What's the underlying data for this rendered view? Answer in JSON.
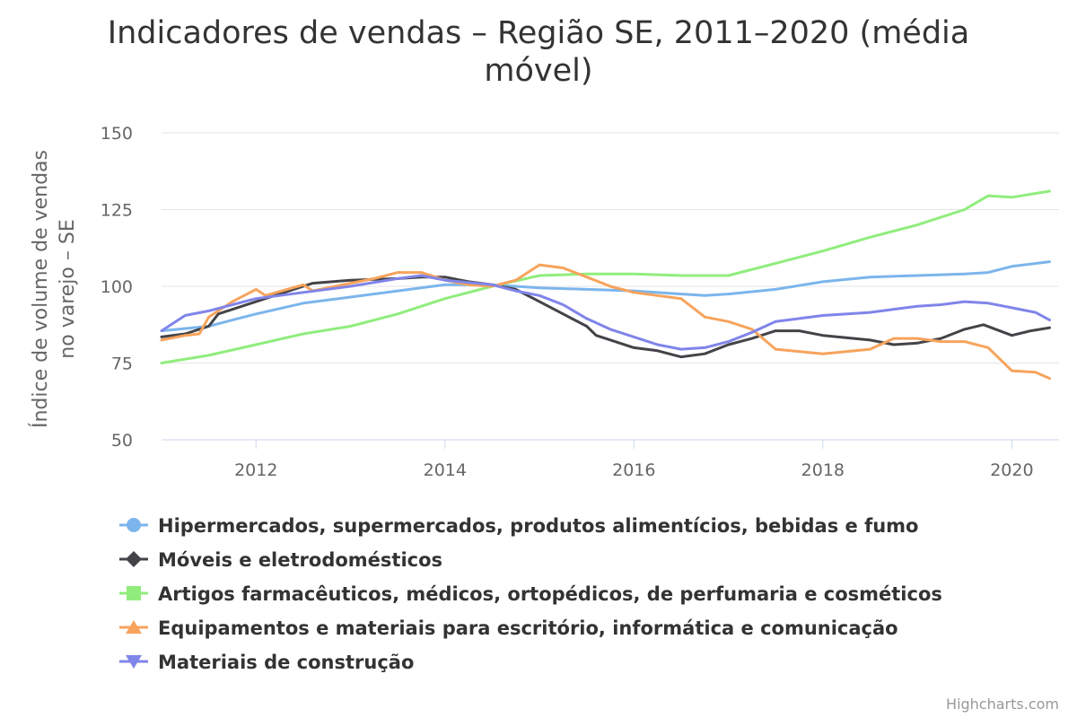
{
  "chart_data": {
    "type": "line",
    "title": "Indicadores de vendas – Região SE, 2011–2020 (média móvel)",
    "title_lines": [
      "Indicadores de vendas – Região SE, 2011–2020 (média",
      "móvel)"
    ],
    "ylabel": "Índice de volume de vendas no varejo – SE",
    "ylabel_lines": [
      "Índice de volume de vendas",
      "no varejo – SE"
    ],
    "xlabel": "",
    "ylim": [
      50,
      150
    ],
    "xlim": [
      2011.0,
      2020.5
    ],
    "yticks": [
      150,
      125,
      100,
      75,
      50
    ],
    "xticks": [
      2012,
      2014,
      2016,
      2018,
      2020
    ],
    "grid": true,
    "legend_position": "bottom",
    "credits": "Highcharts.com",
    "series": [
      {
        "name": "Hipermercados, supermercados, produtos alimentícios, bebidas e fumo",
        "color": "#7cb5ec",
        "marker": "circle",
        "points": [
          [
            2011.0,
            85.5
          ],
          [
            2011.5,
            87
          ],
          [
            2011.75,
            89
          ],
          [
            2012.0,
            91
          ],
          [
            2012.5,
            94.5
          ],
          [
            2013.0,
            96.5
          ],
          [
            2013.5,
            98.5
          ],
          [
            2014.0,
            100.5
          ],
          [
            2014.5,
            100.5
          ],
          [
            2015.0,
            99.5
          ],
          [
            2015.5,
            99
          ],
          [
            2016.0,
            98.5
          ],
          [
            2016.5,
            97.5
          ],
          [
            2016.75,
            97
          ],
          [
            2017.0,
            97.5
          ],
          [
            2017.5,
            99
          ],
          [
            2018.0,
            101.5
          ],
          [
            2018.5,
            103
          ],
          [
            2019.0,
            103.5
          ],
          [
            2019.5,
            104
          ],
          [
            2019.75,
            104.5
          ],
          [
            2020.0,
            106.5
          ],
          [
            2020.4,
            108
          ]
        ]
      },
      {
        "name": "Móveis e eletrodomésticos",
        "color": "#434348",
        "marker": "diamond",
        "points": [
          [
            2011.0,
            83.5
          ],
          [
            2011.25,
            84.5
          ],
          [
            2011.5,
            87
          ],
          [
            2011.6,
            91
          ],
          [
            2012.0,
            95
          ],
          [
            2012.3,
            98
          ],
          [
            2012.5,
            100
          ],
          [
            2012.6,
            101
          ],
          [
            2013.0,
            102
          ],
          [
            2013.5,
            102.5
          ],
          [
            2013.75,
            103
          ],
          [
            2014.0,
            103
          ],
          [
            2014.25,
            101.5
          ],
          [
            2014.5,
            100.5
          ],
          [
            2014.75,
            99
          ],
          [
            2015.0,
            95
          ],
          [
            2015.25,
            91
          ],
          [
            2015.5,
            87
          ],
          [
            2015.6,
            84
          ],
          [
            2016.0,
            80
          ],
          [
            2016.25,
            79
          ],
          [
            2016.5,
            77
          ],
          [
            2016.75,
            78
          ],
          [
            2017.0,
            81
          ],
          [
            2017.25,
            83
          ],
          [
            2017.5,
            85.5
          ],
          [
            2017.75,
            85.5
          ],
          [
            2018.0,
            84
          ],
          [
            2018.5,
            82.5
          ],
          [
            2018.75,
            81
          ],
          [
            2019.0,
            81.5
          ],
          [
            2019.25,
            83
          ],
          [
            2019.5,
            86
          ],
          [
            2019.7,
            87.5
          ],
          [
            2020.0,
            84
          ],
          [
            2020.2,
            85.5
          ],
          [
            2020.4,
            86.5
          ]
        ]
      },
      {
        "name": "Artigos farmacêuticos, médicos, ortopédicos, de perfumaria e cosméticos",
        "color": "#90ed7d",
        "marker": "square",
        "points": [
          [
            2011.0,
            75
          ],
          [
            2011.5,
            77.5
          ],
          [
            2012.0,
            81
          ],
          [
            2012.5,
            84.5
          ],
          [
            2013.0,
            87
          ],
          [
            2013.5,
            91
          ],
          [
            2014.0,
            96
          ],
          [
            2014.5,
            100
          ],
          [
            2015.0,
            103.5
          ],
          [
            2015.5,
            104
          ],
          [
            2016.0,
            104
          ],
          [
            2016.5,
            103.5
          ],
          [
            2017.0,
            103.5
          ],
          [
            2017.5,
            107.5
          ],
          [
            2018.0,
            111.5
          ],
          [
            2018.5,
            116
          ],
          [
            2019.0,
            120
          ],
          [
            2019.5,
            125
          ],
          [
            2019.75,
            129.5
          ],
          [
            2020.0,
            129
          ],
          [
            2020.4,
            131
          ]
        ]
      },
      {
        "name": "Equipamentos e materiais para escritório, informática e comunicação",
        "color": "#f7a35c",
        "marker": "triangle",
        "points": [
          [
            2011.0,
            82.5
          ],
          [
            2011.25,
            84
          ],
          [
            2011.4,
            84.5
          ],
          [
            2011.5,
            90
          ],
          [
            2011.75,
            95
          ],
          [
            2012.0,
            99
          ],
          [
            2012.1,
            97
          ],
          [
            2012.5,
            100.5
          ],
          [
            2012.6,
            98.5
          ],
          [
            2013.0,
            101
          ],
          [
            2013.25,
            102.5
          ],
          [
            2013.5,
            104.5
          ],
          [
            2013.75,
            104.5
          ],
          [
            2014.0,
            102
          ],
          [
            2014.25,
            100.5
          ],
          [
            2014.5,
            100
          ],
          [
            2014.75,
            102
          ],
          [
            2015.0,
            107
          ],
          [
            2015.25,
            106
          ],
          [
            2015.5,
            103
          ],
          [
            2015.75,
            100
          ],
          [
            2016.0,
            98
          ],
          [
            2016.25,
            97
          ],
          [
            2016.5,
            96
          ],
          [
            2016.75,
            90
          ],
          [
            2017.0,
            88.5
          ],
          [
            2017.25,
            86
          ],
          [
            2017.5,
            79.5
          ],
          [
            2018.0,
            78
          ],
          [
            2018.5,
            79.5
          ],
          [
            2018.75,
            83
          ],
          [
            2019.0,
            83
          ],
          [
            2019.25,
            82
          ],
          [
            2019.5,
            82
          ],
          [
            2019.75,
            80
          ],
          [
            2020.0,
            72.5
          ],
          [
            2020.25,
            72
          ],
          [
            2020.4,
            70
          ]
        ]
      },
      {
        "name": "Materiais de construção",
        "color": "#8085e9",
        "marker": "triangle-down",
        "points": [
          [
            2011.0,
            85.5
          ],
          [
            2011.25,
            90.5
          ],
          [
            2011.5,
            92
          ],
          [
            2011.75,
            94
          ],
          [
            2012.0,
            96
          ],
          [
            2012.5,
            98
          ],
          [
            2013.0,
            100
          ],
          [
            2013.5,
            102.5
          ],
          [
            2013.75,
            103.5
          ],
          [
            2014.0,
            102
          ],
          [
            2014.5,
            100.5
          ],
          [
            2014.75,
            98.5
          ],
          [
            2015.0,
            97
          ],
          [
            2015.25,
            94
          ],
          [
            2015.5,
            89.5
          ],
          [
            2015.75,
            86
          ],
          [
            2016.0,
            83.5
          ],
          [
            2016.25,
            81
          ],
          [
            2016.5,
            79.5
          ],
          [
            2016.75,
            80
          ],
          [
            2017.0,
            82
          ],
          [
            2017.25,
            85
          ],
          [
            2017.5,
            88.5
          ],
          [
            2017.75,
            89.5
          ],
          [
            2018.0,
            90.5
          ],
          [
            2018.5,
            91.5
          ],
          [
            2018.75,
            92.5
          ],
          [
            2019.0,
            93.5
          ],
          [
            2019.25,
            94
          ],
          [
            2019.5,
            95
          ],
          [
            2019.75,
            94.5
          ],
          [
            2020.0,
            93
          ],
          [
            2020.25,
            91.5
          ],
          [
            2020.4,
            89
          ]
        ]
      }
    ]
  }
}
